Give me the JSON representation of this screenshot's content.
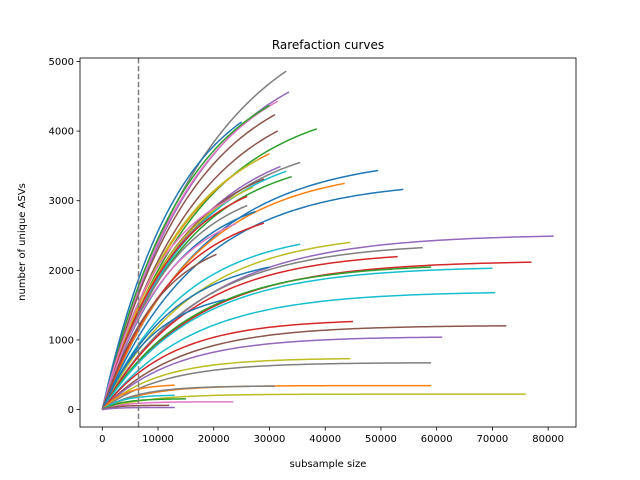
{
  "chart_data": {
    "type": "line",
    "title": "Rarefaction curves",
    "xlabel": "subsample size",
    "ylabel": "number of unique ASVs",
    "xlim": [
      -4000,
      85000
    ],
    "ylim": [
      -250,
      5050
    ],
    "xticks": [
      0,
      10000,
      20000,
      30000,
      40000,
      50000,
      60000,
      70000,
      80000
    ],
    "yticks": [
      0,
      1000,
      2000,
      3000,
      4000,
      5000
    ],
    "grid": false,
    "legend": "none",
    "reference_line": {
      "x": 6500,
      "style": "dashed",
      "color": "#7f7f7f"
    },
    "curve_model": "y = a * (1 - exp(-x / b)) ending at x = max_x",
    "palette": [
      "#1f77b4",
      "#ff7f0e",
      "#2ca02c",
      "#d62728",
      "#9467bd",
      "#8c564b",
      "#e377c2",
      "#7f7f7f",
      "#bcbd22",
      "#17becf"
    ],
    "series": [
      {
        "color": "#7f7f7f",
        "max_x": 33000,
        "y_end": 4800,
        "a": 5900,
        "b": 19000
      },
      {
        "color": "#9467bd",
        "max_x": 33500,
        "y_end": 4510,
        "a": 5300,
        "b": 17000
      },
      {
        "color": "#e377c2",
        "max_x": 31500,
        "y_end": 4430,
        "a": 5150,
        "b": 16000
      },
      {
        "color": "#2ca02c",
        "max_x": 30000,
        "y_end": 4370,
        "a": 5050,
        "b": 15000
      },
      {
        "color": "#8c564b",
        "max_x": 31000,
        "y_end": 4230,
        "a": 4950,
        "b": 16000
      },
      {
        "color": "#1f77b4",
        "max_x": 25000,
        "y_end": 4070,
        "a": 4900,
        "b": 13500
      },
      {
        "color": "#8c564b",
        "max_x": 31500,
        "y_end": 3990,
        "a": 4700,
        "b": 16500
      },
      {
        "color": "#2ca02c",
        "max_x": 38500,
        "y_end": 3930,
        "a": 4500,
        "b": 17000
      },
      {
        "color": "#ff7f0e",
        "max_x": 30000,
        "y_end": 3650,
        "a": 4250,
        "b": 15000
      },
      {
        "color": "#bcbd22",
        "max_x": 28000,
        "y_end": 3580,
        "a": 4200,
        "b": 14500
      },
      {
        "color": "#9467bd",
        "max_x": 32000,
        "y_end": 3500,
        "a": 4000,
        "b": 15500
      },
      {
        "color": "#7f7f7f",
        "max_x": 35500,
        "y_end": 3490,
        "a": 3950,
        "b": 15500
      },
      {
        "color": "#17becf",
        "max_x": 33000,
        "y_end": 3390,
        "a": 3850,
        "b": 15000
      },
      {
        "color": "#1f77b4",
        "max_x": 49500,
        "y_end": 3380,
        "a": 3650,
        "b": 17500
      },
      {
        "color": "#2ca02c",
        "max_x": 34000,
        "y_end": 3300,
        "a": 3700,
        "b": 14500
      },
      {
        "color": "#8c564b",
        "max_x": 29000,
        "y_end": 3280,
        "a": 3750,
        "b": 13500
      },
      {
        "color": "#ff7f0e",
        "max_x": 43500,
        "y_end": 3190,
        "a": 3500,
        "b": 16500
      },
      {
        "color": "#bcbd22",
        "max_x": 27000,
        "y_end": 3180,
        "a": 3650,
        "b": 13000
      },
      {
        "color": "#1f77b4",
        "max_x": 54000,
        "y_end": 3130,
        "a": 3300,
        "b": 17000
      },
      {
        "color": "#d62728",
        "max_x": 26000,
        "y_end": 3050,
        "a": 3500,
        "b": 12500
      },
      {
        "color": "#e377c2",
        "max_x": 23000,
        "y_end": 2990,
        "a": 3450,
        "b": 11000
      },
      {
        "color": "#7f7f7f",
        "max_x": 26000,
        "y_end": 2900,
        "a": 3350,
        "b": 12500
      },
      {
        "color": "#1f77b4",
        "max_x": 27500,
        "y_end": 2790,
        "a": 3200,
        "b": 12500
      },
      {
        "color": "#e377c2",
        "max_x": 24000,
        "y_end": 2640,
        "a": 3050,
        "b": 11500
      },
      {
        "color": "#d62728",
        "max_x": 29000,
        "y_end": 2620,
        "a": 3000,
        "b": 13000
      },
      {
        "color": "#9467bd",
        "max_x": 81000,
        "y_end": 2470,
        "a": 2520,
        "b": 18000
      },
      {
        "color": "#17becf",
        "max_x": 35500,
        "y_end": 2310,
        "a": 2600,
        "b": 14500
      },
      {
        "color": "#bcbd22",
        "max_x": 44500,
        "y_end": 2340,
        "a": 2560,
        "b": 16000
      },
      {
        "color": "#7f7f7f",
        "max_x": 57500,
        "y_end": 2260,
        "a": 2400,
        "b": 16500
      },
      {
        "color": "#8c564b",
        "max_x": 20500,
        "y_end": 2200,
        "a": 2600,
        "b": 10500
      },
      {
        "color": "#d62728",
        "max_x": 53000,
        "y_end": 2130,
        "a": 2280,
        "b": 16000
      },
      {
        "color": "#d62728",
        "max_x": 77000,
        "y_end": 2090,
        "a": 2140,
        "b": 17000
      },
      {
        "color": "#2ca02c",
        "max_x": 59000,
        "y_end": 2010,
        "a": 2100,
        "b": 16000
      },
      {
        "color": "#17becf",
        "max_x": 70000,
        "y_end": 1990,
        "a": 2060,
        "b": 16500
      },
      {
        "color": "#1f77b4",
        "max_x": 30000,
        "y_end": 2000,
        "a": 2250,
        "b": 12500
      },
      {
        "color": "#17becf",
        "max_x": 70500,
        "y_end": 1630,
        "a": 1700,
        "b": 16000
      },
      {
        "color": "#1f77b4",
        "max_x": 22000,
        "y_end": 1500,
        "a": 1750,
        "b": 9500
      },
      {
        "color": "#d62728",
        "max_x": 45000,
        "y_end": 1230,
        "a": 1300,
        "b": 12500
      },
      {
        "color": "#8c564b",
        "max_x": 72500,
        "y_end": 1180,
        "a": 1210,
        "b": 14000
      },
      {
        "color": "#9467bd",
        "max_x": 61000,
        "y_end": 1020,
        "a": 1050,
        "b": 13000
      },
      {
        "color": "#bcbd22",
        "max_x": 44500,
        "y_end": 720,
        "a": 740,
        "b": 10000
      },
      {
        "color": "#7f7f7f",
        "max_x": 59000,
        "y_end": 660,
        "a": 675,
        "b": 11000
      },
      {
        "color": "#ff7f0e",
        "max_x": 59000,
        "y_end": 340,
        "a": 345,
        "b": 7500
      },
      {
        "color": "#7f7f7f",
        "max_x": 31000,
        "y_end": 330,
        "a": 340,
        "b": 6500
      },
      {
        "color": "#ff7f0e",
        "max_x": 13000,
        "y_end": 350,
        "a": 365,
        "b": 4000
      },
      {
        "color": "#bcbd22",
        "max_x": 76000,
        "y_end": 220,
        "a": 222,
        "b": 8000
      },
      {
        "color": "#17becf",
        "max_x": 13000,
        "y_end": 200,
        "a": 210,
        "b": 3500
      },
      {
        "color": "#2ca02c",
        "max_x": 15000,
        "y_end": 150,
        "a": 156,
        "b": 3500
      },
      {
        "color": "#e377c2",
        "max_x": 23500,
        "y_end": 110,
        "a": 112,
        "b": 4000
      },
      {
        "color": "#8c564b",
        "max_x": 12000,
        "y_end": 60,
        "a": 62,
        "b": 2500
      },
      {
        "color": "#9467bd",
        "max_x": 13000,
        "y_end": 30,
        "a": 31,
        "b": 2500
      }
    ]
  }
}
